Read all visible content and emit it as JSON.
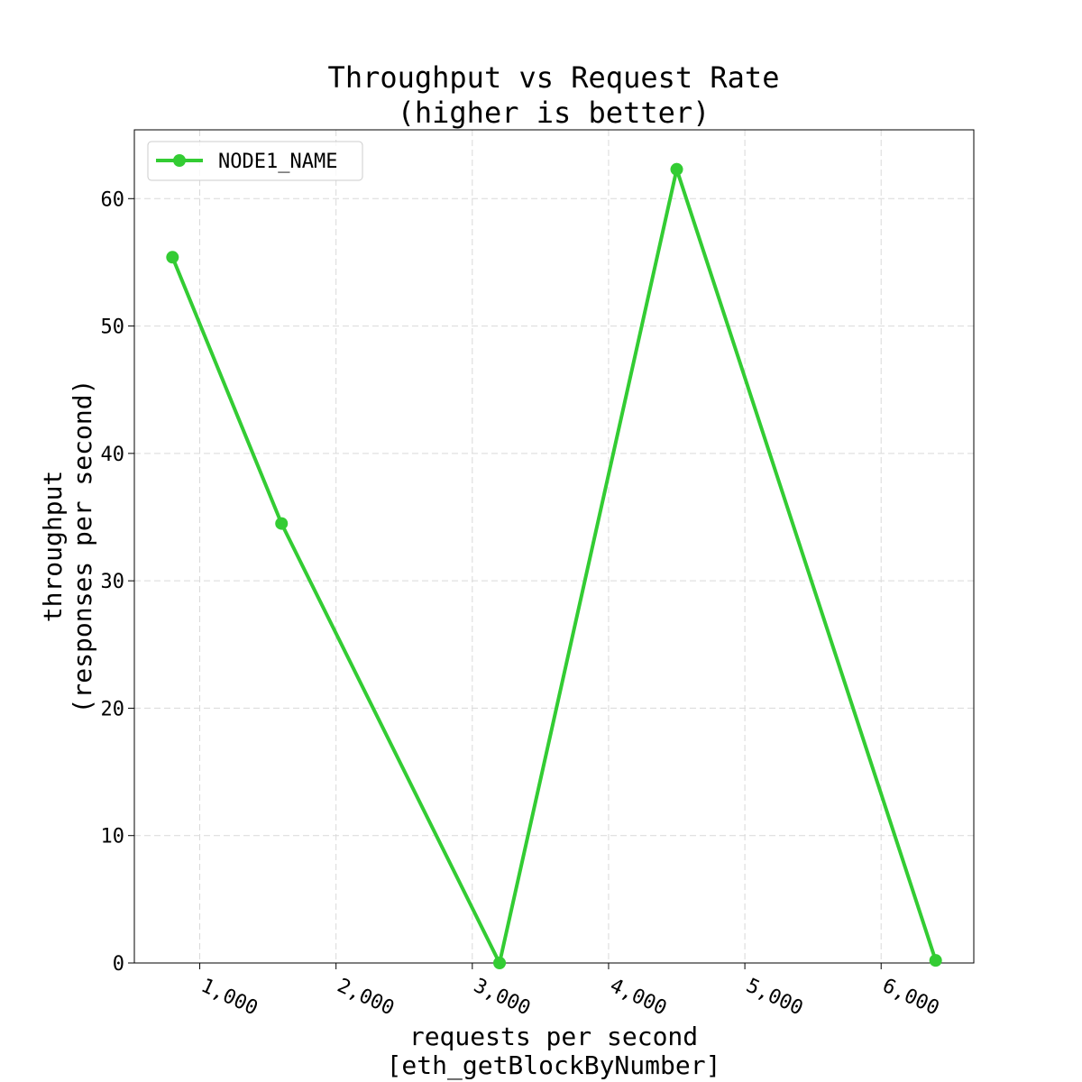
{
  "chart_data": {
    "type": "line",
    "title_lines": [
      "Throughput vs Request Rate",
      "(higher is better)"
    ],
    "xlabel_lines": [
      "requests per second",
      "[eth_getBlockByNumber]"
    ],
    "ylabel_lines": [
      "throughput",
      "(responses per second)"
    ],
    "xlim": [
      520,
      6680
    ],
    "ylim": [
      0,
      65.4
    ],
    "xticks": [
      1000,
      2000,
      3000,
      4000,
      5000,
      6000
    ],
    "xtick_labels": [
      "1,000",
      "2,000",
      "3,000",
      "4,000",
      "5,000",
      "6,000"
    ],
    "yticks": [
      0,
      10,
      20,
      30,
      40,
      50,
      60
    ],
    "ytick_labels": [
      "0",
      "10",
      "20",
      "30",
      "40",
      "50",
      "60"
    ],
    "grid": true,
    "legend_position": "top-left",
    "series": [
      {
        "name": "NODE1_NAME",
        "color": "#33cc33",
        "marker": "circle",
        "x": [
          800,
          1600,
          3200,
          4500,
          6400
        ],
        "y": [
          55.4,
          34.5,
          0.0,
          62.3,
          0.2
        ]
      }
    ]
  }
}
